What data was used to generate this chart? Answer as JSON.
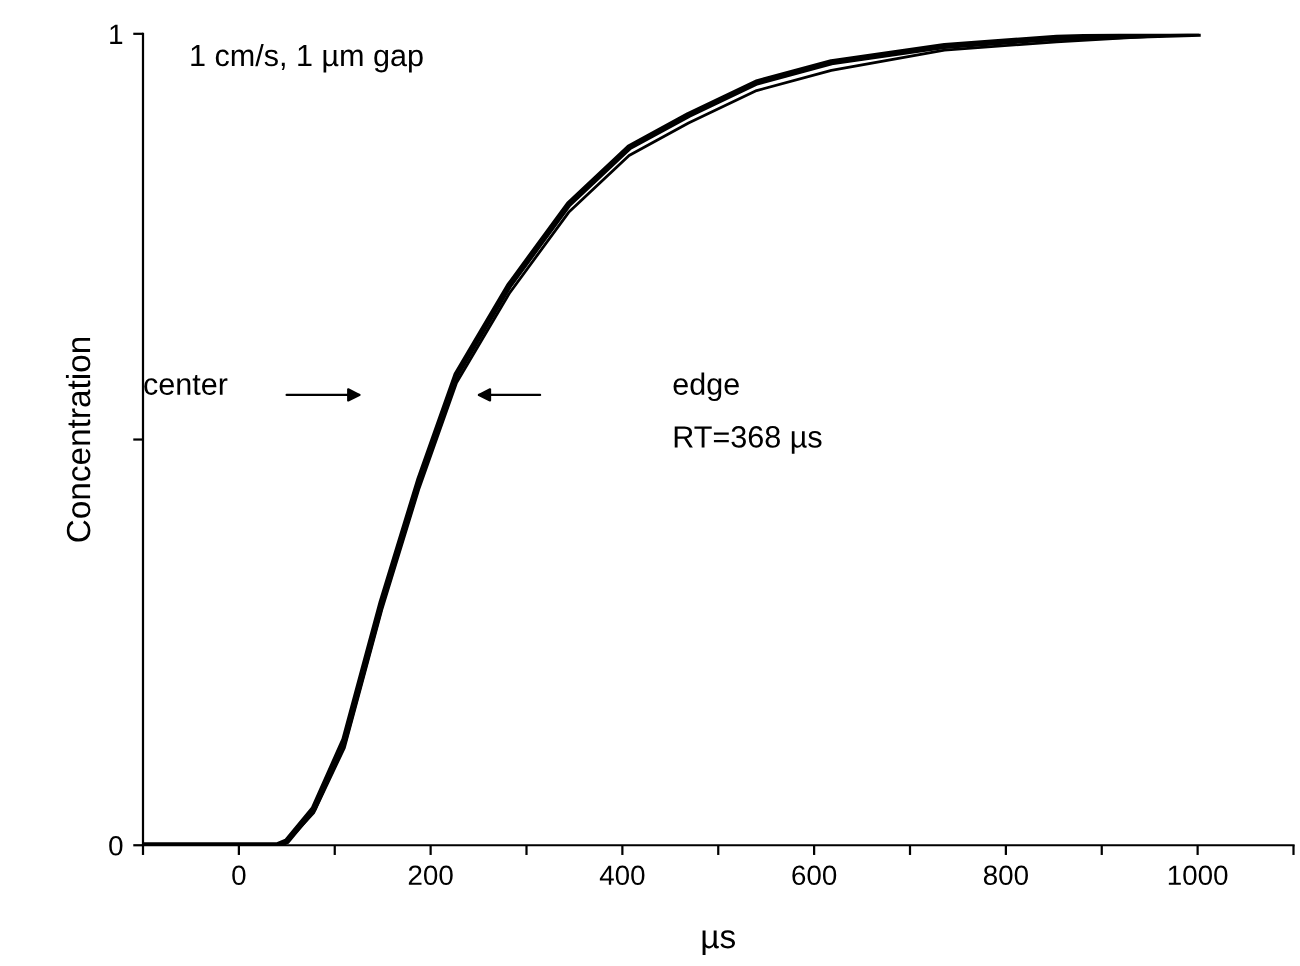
{
  "chart_data": {
    "type": "line",
    "xlabel": "µs",
    "ylabel": "Concentration",
    "xlim": [
      -100,
      1100
    ],
    "ylim": [
      0,
      1
    ],
    "xticks": [
      {
        "value": -100,
        "label": null
      },
      0,
      {
        "value": 100,
        "label": null
      },
      200,
      {
        "value": 300,
        "label": null
      },
      400,
      {
        "value": 500,
        "label": null
      },
      600,
      {
        "value": 700,
        "label": null
      },
      800,
      {
        "value": 900,
        "label": null
      },
      1000,
      {
        "value": 1100,
        "label": null
      }
    ],
    "yticks": [
      0,
      {
        "value": 0.5,
        "label": null
      },
      1
    ],
    "grid": false,
    "marker": "none",
    "line_style": "solid",
    "x": [
      -100,
      0,
      40,
      50,
      78,
      110,
      149,
      188,
      227,
      282,
      344,
      407,
      469,
      540,
      618,
      736,
      853,
      1000
    ],
    "series": [
      {
        "color": "#000000",
        "values": [
          0,
          0,
          0,
          0.005,
          0.045,
          0.13,
          0.3,
          0.45,
          0.58,
          0.69,
          0.79,
          0.86,
          0.9,
          0.94,
          0.965,
          0.985,
          0.995,
          1.0
        ]
      },
      {
        "color": "#000000",
        "values": [
          0,
          0,
          0,
          0.004,
          0.04,
          0.12,
          0.29,
          0.44,
          0.57,
          0.68,
          0.78,
          0.85,
          0.89,
          0.93,
          0.955,
          0.98,
          0.99,
          1.0
        ]
      }
    ],
    "annotations": [
      "1 cm/s, 1 µm gap",
      "center",
      "edge",
      "RT=368 µs"
    ]
  }
}
